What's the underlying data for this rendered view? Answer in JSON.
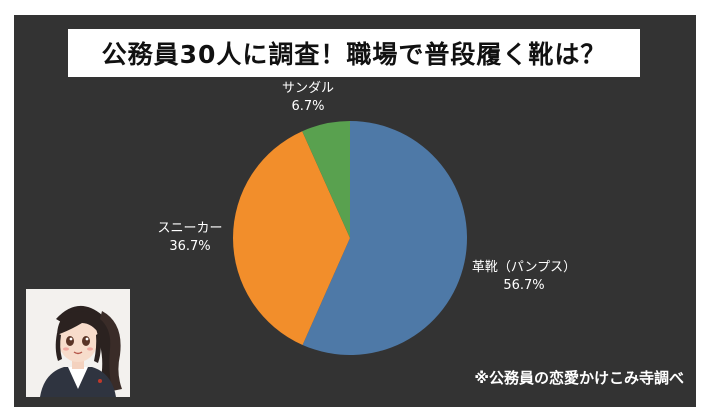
{
  "title": "公務員30人に調査！職場で普段履く靴は？",
  "footnote": "※公務員の恋愛かけこみ寺調べ",
  "chart_data": {
    "type": "pie",
    "start_angle": 0,
    "direction": "clockwise",
    "slices": [
      {
        "label": "革靴（パンプス）",
        "value": 56.7,
        "display": "56.7%",
        "color": "#4e79a7"
      },
      {
        "label": "スニーカー",
        "value": 36.7,
        "display": "36.7%",
        "color": "#f28e2b"
      },
      {
        "label": "サンダル",
        "value": 6.7,
        "display": "6.7%",
        "color": "#59a14f"
      }
    ]
  },
  "avatar": {
    "icon": "businesswoman-illustration"
  }
}
